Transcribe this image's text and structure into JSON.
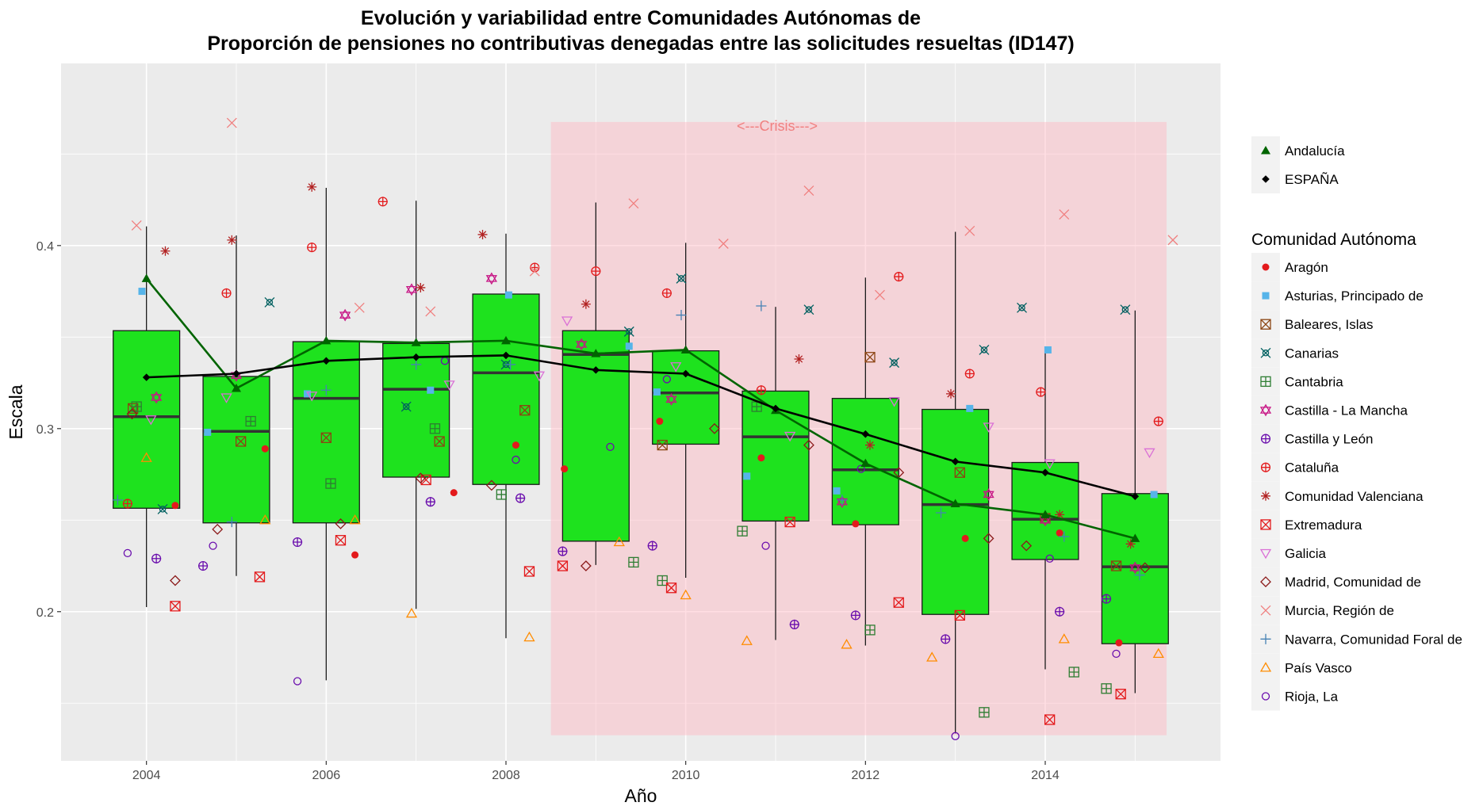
{
  "chart_data": {
    "type": "box",
    "title_line1": "Evolución y variabilidad entre Comunidades Autónomas de",
    "title_line2": "Proporción de pensiones no contributivas denegadas entre las solicitudes resueltas (ID147)",
    "xlabel": "Año",
    "ylabel": "Escala",
    "xlim": [
      2003.05,
      2015.95
    ],
    "ylim": [
      0.1185,
      0.4995
    ],
    "x_ticks": [
      2004,
      2006,
      2008,
      2010,
      2012,
      2014
    ],
    "x_tick_labels": [
      "2004",
      "2006",
      "2008",
      "2010",
      "2012",
      "2014"
    ],
    "y_ticks": [
      0.2,
      0.3,
      0.4
    ],
    "y_tick_labels": [
      "0.2",
      "0.3",
      "0.4"
    ],
    "grid": true,
    "colors": {
      "panel": "#ebebeb",
      "box_fill": "#1ee21e",
      "median_line": "#333333",
      "andalucia": "#006400",
      "espana": "#000000",
      "crisis_fill": "#ffb6c1",
      "crisis_text": "#f08080"
    },
    "crisis": {
      "label": "<---Crisis--->",
      "x_start": 2008.5,
      "x_end": 2015.35,
      "y_start": 0.1325,
      "y_end": 0.4675
    },
    "boxes": [
      {
        "year": 2004,
        "min": 0.2025,
        "q1": 0.2565,
        "median": 0.3065,
        "q3": 0.3535,
        "max": 0.4105
      },
      {
        "year": 2005,
        "min": 0.2195,
        "q1": 0.2485,
        "median": 0.2985,
        "q3": 0.3285,
        "max": 0.4055
      },
      {
        "year": 2006,
        "min": 0.1625,
        "q1": 0.2485,
        "median": 0.3165,
        "q3": 0.3475,
        "max": 0.4315
      },
      {
        "year": 2007,
        "min": 0.2015,
        "q1": 0.2735,
        "median": 0.3215,
        "q3": 0.3465,
        "max": 0.4245
      },
      {
        "year": 2008,
        "min": 0.1855,
        "q1": 0.2695,
        "median": 0.3305,
        "q3": 0.3735,
        "max": 0.4065
      },
      {
        "year": 2009,
        "min": 0.2255,
        "q1": 0.2385,
        "median": 0.3405,
        "q3": 0.3535,
        "max": 0.4235
      },
      {
        "year": 2010,
        "min": 0.2185,
        "q1": 0.2915,
        "median": 0.3195,
        "q3": 0.3425,
        "max": 0.4015
      },
      {
        "year": 2011,
        "min": 0.1845,
        "q1": 0.2495,
        "median": 0.2955,
        "q3": 0.3205,
        "max": 0.3665
      },
      {
        "year": 2012,
        "min": 0.1815,
        "q1": 0.2475,
        "median": 0.2775,
        "q3": 0.3165,
        "max": 0.3825
      },
      {
        "year": 2013,
        "min": 0.1335,
        "q1": 0.1985,
        "median": 0.2585,
        "q3": 0.3105,
        "max": 0.4075
      },
      {
        "year": 2014,
        "min": 0.1685,
        "q1": 0.2285,
        "median": 0.2505,
        "q3": 0.2815,
        "max": 0.3435
      },
      {
        "year": 2015,
        "min": 0.1555,
        "q1": 0.1825,
        "median": 0.2245,
        "q3": 0.2645,
        "max": 0.3645
      }
    ],
    "series_lines": [
      {
        "name": "Andalucía",
        "color": "#006400",
        "marker": "triangle",
        "x": [
          2004,
          2005,
          2006,
          2007,
          2008,
          2009,
          2010,
          2011,
          2012,
          2013,
          2014,
          2015
        ],
        "values": [
          0.382,
          0.322,
          0.348,
          0.347,
          0.348,
          0.341,
          0.343,
          0.31,
          0.281,
          0.259,
          0.253,
          0.24
        ]
      },
      {
        "name": "ESPAÑA",
        "color": "#000000",
        "marker": "diamond",
        "x": [
          2004,
          2005,
          2006,
          2007,
          2008,
          2009,
          2010,
          2011,
          2012,
          2013,
          2014,
          2015
        ],
        "values": [
          0.328,
          0.33,
          0.337,
          0.339,
          0.34,
          0.332,
          0.33,
          0.311,
          0.297,
          0.282,
          0.276,
          0.263
        ]
      }
    ],
    "communities": [
      {
        "name": "Aragón",
        "color": "#e31a1c",
        "marker": "dot",
        "points": [
          [
            2004.32,
            0.258
          ],
          [
            2005.32,
            0.289
          ],
          [
            2006.32,
            0.231
          ],
          [
            2007.42,
            0.265
          ],
          [
            2008.11,
            0.291
          ],
          [
            2008.65,
            0.278
          ],
          [
            2009.71,
            0.304
          ],
          [
            2010.84,
            0.284
          ],
          [
            2011.89,
            0.248
          ],
          [
            2013.11,
            0.24
          ],
          [
            2014.16,
            0.243
          ],
          [
            2014.82,
            0.183
          ]
        ]
      },
      {
        "name": "Asturias, Principado de",
        "color": "#56b4e9",
        "marker": "square",
        "points": [
          [
            2003.95,
            0.375
          ],
          [
            2004.68,
            0.298
          ],
          [
            2005.79,
            0.319
          ],
          [
            2007.16,
            0.321
          ],
          [
            2008.03,
            0.373
          ],
          [
            2009.37,
            0.345
          ],
          [
            2009.68,
            0.32
          ],
          [
            2010.68,
            0.274
          ],
          [
            2011.68,
            0.266
          ],
          [
            2013.16,
            0.311
          ],
          [
            2014.03,
            0.343
          ],
          [
            2015.21,
            0.264
          ]
        ]
      },
      {
        "name": "Baleares, Islas",
        "color": "#8b4513",
        "marker": "square-x",
        "points": [
          [
            2003.85,
            0.311
          ],
          [
            2005.05,
            0.293
          ],
          [
            2006.0,
            0.295
          ],
          [
            2007.26,
            0.293
          ],
          [
            2008.21,
            0.31
          ],
          [
            2009.74,
            0.291
          ],
          [
            2012.05,
            0.339
          ],
          [
            2013.05,
            0.276
          ],
          [
            2014.0,
            0.251
          ],
          [
            2014.79,
            0.225
          ]
        ]
      },
      {
        "name": "Canarias",
        "color": "#006060",
        "marker": "square-cross",
        "points": [
          [
            2004.18,
            0.256
          ],
          [
            2005.37,
            0.369
          ],
          [
            2006.89,
            0.312
          ],
          [
            2008.0,
            0.335
          ],
          [
            2009.37,
            0.353
          ],
          [
            2009.95,
            0.382
          ],
          [
            2011.37,
            0.365
          ],
          [
            2012.32,
            0.336
          ],
          [
            2013.32,
            0.343
          ],
          [
            2013.74,
            0.366
          ],
          [
            2014.89,
            0.365
          ]
        ]
      },
      {
        "name": "Cantabria",
        "color": "#2e7d32",
        "marker": "square-plus",
        "points": [
          [
            2003.89,
            0.312
          ],
          [
            2005.16,
            0.304
          ],
          [
            2006.05,
            0.27
          ],
          [
            2007.21,
            0.3
          ],
          [
            2007.95,
            0.264
          ],
          [
            2009.42,
            0.227
          ],
          [
            2009.74,
            0.217
          ],
          [
            2010.63,
            0.244
          ],
          [
            2010.79,
            0.312
          ],
          [
            2012.05,
            0.19
          ],
          [
            2013.32,
            0.145
          ],
          [
            2014.32,
            0.167
          ],
          [
            2014.68,
            0.158
          ]
        ]
      },
      {
        "name": "Castilla - La Mancha",
        "color": "#c71585",
        "marker": "star",
        "points": [
          [
            2004.11,
            0.317
          ],
          [
            2005.0,
            0.329
          ],
          [
            2006.21,
            0.362
          ],
          [
            2006.95,
            0.376
          ],
          [
            2007.84,
            0.382
          ],
          [
            2008.84,
            0.346
          ],
          [
            2009.84,
            0.316
          ],
          [
            2011.74,
            0.26
          ],
          [
            2013.37,
            0.264
          ],
          [
            2014.0,
            0.25
          ],
          [
            2015.0,
            0.224
          ]
        ]
      },
      {
        "name": "Castilla y León",
        "color": "#6a0dad",
        "marker": "circle-plus",
        "points": [
          [
            2004.11,
            0.229
          ],
          [
            2004.63,
            0.225
          ],
          [
            2005.68,
            0.238
          ],
          [
            2007.16,
            0.26
          ],
          [
            2008.16,
            0.262
          ],
          [
            2008.63,
            0.233
          ],
          [
            2009.63,
            0.236
          ],
          [
            2011.21,
            0.193
          ],
          [
            2011.89,
            0.198
          ],
          [
            2012.89,
            0.185
          ],
          [
            2014.16,
            0.2
          ],
          [
            2014.68,
            0.207
          ]
        ]
      },
      {
        "name": "Cataluña",
        "color": "#e31a1c",
        "marker": "circle-plus",
        "points": [
          [
            2003.79,
            0.259
          ],
          [
            2004.89,
            0.374
          ],
          [
            2005.84,
            0.399
          ],
          [
            2006.63,
            0.424
          ],
          [
            2008.32,
            0.388
          ],
          [
            2009.0,
            0.386
          ],
          [
            2009.79,
            0.374
          ],
          [
            2010.84,
            0.321
          ],
          [
            2012.37,
            0.383
          ],
          [
            2013.16,
            0.33
          ],
          [
            2013.95,
            0.32
          ],
          [
            2015.26,
            0.304
          ]
        ]
      },
      {
        "name": "Comunidad Valenciana",
        "color": "#b22222",
        "marker": "asterisk",
        "points": [
          [
            2004.21,
            0.397
          ],
          [
            2004.95,
            0.403
          ],
          [
            2005.84,
            0.432
          ],
          [
            2007.05,
            0.377
          ],
          [
            2007.74,
            0.406
          ],
          [
            2008.89,
            0.368
          ],
          [
            2011.26,
            0.338
          ],
          [
            2012.05,
            0.291
          ],
          [
            2012.95,
            0.319
          ],
          [
            2014.16,
            0.253
          ],
          [
            2014.95,
            0.237
          ]
        ]
      },
      {
        "name": "Extremadura",
        "color": "#e31a1c",
        "marker": "square-x",
        "points": [
          [
            2004.32,
            0.203
          ],
          [
            2005.26,
            0.219
          ],
          [
            2006.16,
            0.239
          ],
          [
            2007.11,
            0.272
          ],
          [
            2008.26,
            0.222
          ],
          [
            2008.63,
            0.225
          ],
          [
            2009.84,
            0.213
          ],
          [
            2011.16,
            0.249
          ],
          [
            2012.37,
            0.205
          ],
          [
            2013.05,
            0.198
          ],
          [
            2014.05,
            0.141
          ],
          [
            2014.84,
            0.155
          ]
        ]
      },
      {
        "name": "Galicia",
        "color": "#da70d6",
        "marker": "triangle-down",
        "points": [
          [
            2004.05,
            0.305
          ],
          [
            2004.89,
            0.317
          ],
          [
            2005.84,
            0.318
          ],
          [
            2007.37,
            0.324
          ],
          [
            2008.37,
            0.329
          ],
          [
            2008.68,
            0.359
          ],
          [
            2009.89,
            0.334
          ],
          [
            2011.16,
            0.296
          ],
          [
            2012.32,
            0.315
          ],
          [
            2013.37,
            0.301
          ],
          [
            2014.05,
            0.281
          ],
          [
            2015.16,
            0.287
          ]
        ]
      },
      {
        "name": "Madrid, Comunidad de",
        "color": "#8b1a1a",
        "marker": "diamond-open",
        "points": [
          [
            2003.84,
            0.308
          ],
          [
            2004.32,
            0.217
          ],
          [
            2004.79,
            0.245
          ],
          [
            2006.16,
            0.248
          ],
          [
            2007.05,
            0.273
          ],
          [
            2007.84,
            0.269
          ],
          [
            2008.89,
            0.225
          ],
          [
            2010.32,
            0.3
          ],
          [
            2011.37,
            0.291
          ],
          [
            2012.37,
            0.276
          ],
          [
            2013.37,
            0.24
          ],
          [
            2013.79,
            0.236
          ],
          [
            2015.11,
            0.224
          ]
        ]
      },
      {
        "name": "Murcia, Región de",
        "color": "#f08080",
        "marker": "x",
        "points": [
          [
            2003.89,
            0.411
          ],
          [
            2004.95,
            0.467
          ],
          [
            2006.37,
            0.366
          ],
          [
            2007.16,
            0.364
          ],
          [
            2008.32,
            0.386
          ],
          [
            2009.42,
            0.423
          ],
          [
            2010.42,
            0.401
          ],
          [
            2011.37,
            0.43
          ],
          [
            2012.16,
            0.373
          ],
          [
            2013.16,
            0.408
          ],
          [
            2014.21,
            0.417
          ],
          [
            2015.42,
            0.403
          ]
        ]
      },
      {
        "name": "Navarra, Comunidad Foral de",
        "color": "#4682b4",
        "marker": "plus",
        "points": [
          [
            2003.68,
            0.261
          ],
          [
            2004.95,
            0.249
          ],
          [
            2006.0,
            0.321
          ],
          [
            2007.0,
            0.335
          ],
          [
            2008.05,
            0.335
          ],
          [
            2009.95,
            0.362
          ],
          [
            2010.84,
            0.367
          ],
          [
            2011.74,
            0.261
          ],
          [
            2012.84,
            0.254
          ],
          [
            2014.21,
            0.241
          ],
          [
            2015.05,
            0.22
          ]
        ]
      },
      {
        "name": "País Vasco",
        "color": "#ff8c00",
        "marker": "triangle-open",
        "points": [
          [
            2004.0,
            0.284
          ],
          [
            2005.32,
            0.25
          ],
          [
            2006.32,
            0.25
          ],
          [
            2006.95,
            0.199
          ],
          [
            2008.26,
            0.186
          ],
          [
            2009.26,
            0.238
          ],
          [
            2010.0,
            0.209
          ],
          [
            2010.68,
            0.184
          ],
          [
            2011.79,
            0.182
          ],
          [
            2012.74,
            0.175
          ],
          [
            2014.21,
            0.185
          ],
          [
            2015.26,
            0.177
          ]
        ]
      },
      {
        "name": "Rioja, La",
        "color": "#6a0dad",
        "marker": "circle-open",
        "points": [
          [
            2003.79,
            0.232
          ],
          [
            2004.74,
            0.236
          ],
          [
            2005.68,
            0.162
          ],
          [
            2007.32,
            0.337
          ],
          [
            2008.11,
            0.283
          ],
          [
            2009.16,
            0.29
          ],
          [
            2009.79,
            0.327
          ],
          [
            2010.89,
            0.236
          ],
          [
            2011.95,
            0.278
          ],
          [
            2013.0,
            0.132
          ],
          [
            2014.05,
            0.229
          ],
          [
            2014.79,
            0.177
          ]
        ]
      }
    ],
    "legend_top": [
      {
        "name": "Andalucía",
        "marker": "triangle",
        "color": "#006400"
      },
      {
        "name": "ESPAÑA",
        "marker": "diamond",
        "color": "#000000"
      }
    ],
    "legend_title": "Comunidad Autónoma",
    "legend_position": "right"
  }
}
